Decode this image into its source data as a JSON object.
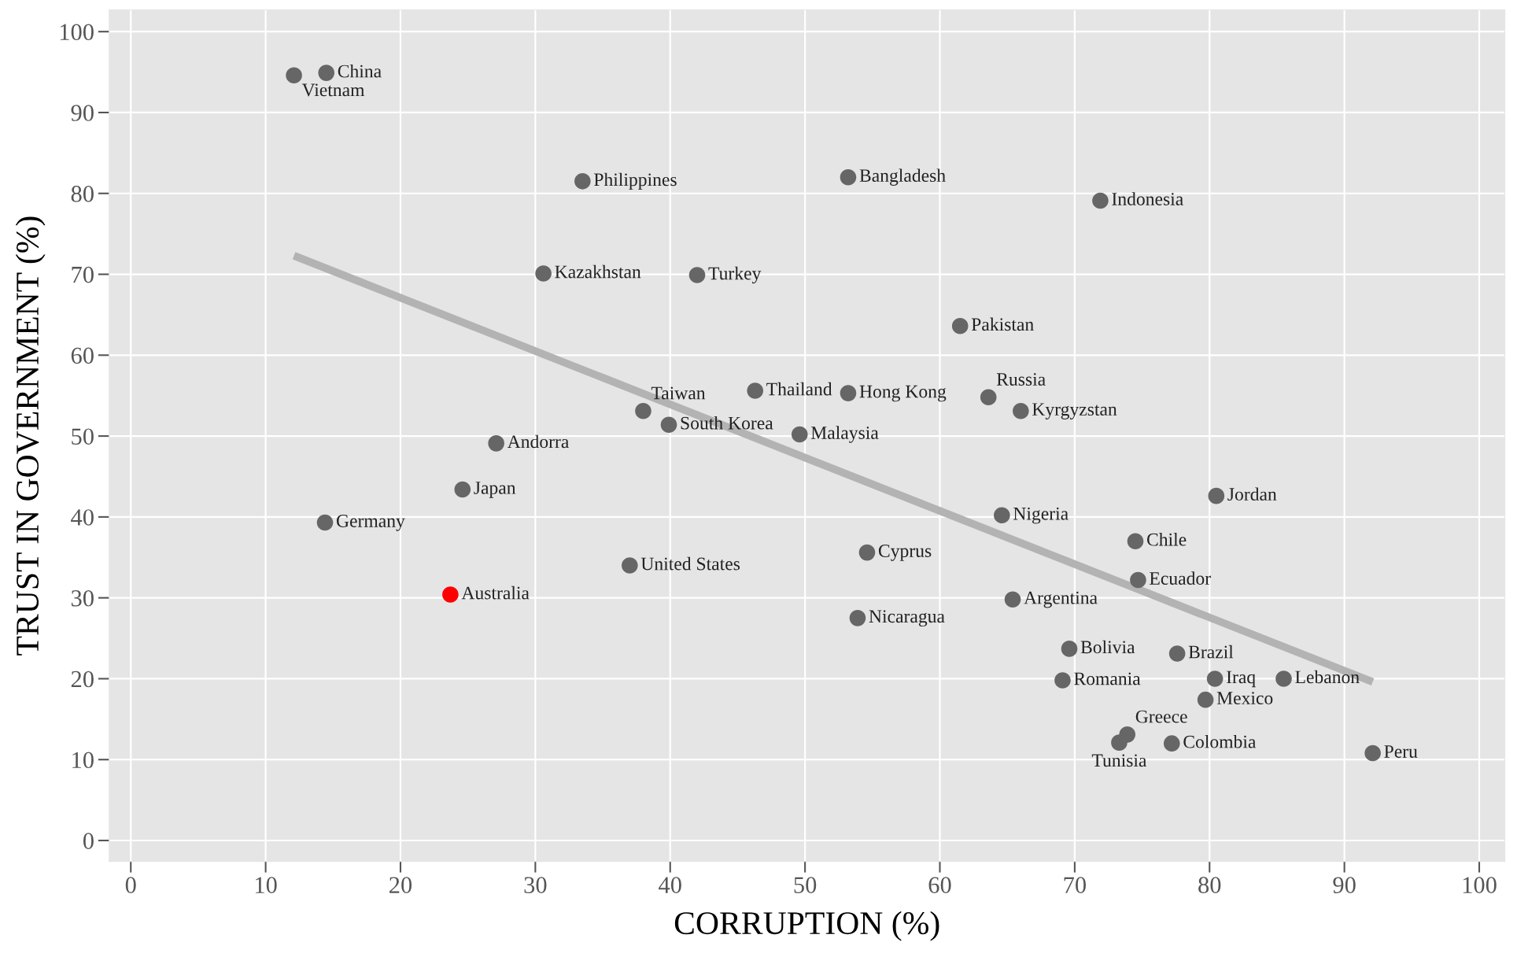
{
  "chart_data": {
    "type": "scatter",
    "xlabel": "CORRUPTION (%)",
    "ylabel": "TRUST IN GOVERNMENT (%)",
    "xlim": [
      -1.6,
      101.9
    ],
    "ylim": [
      -2.6,
      102.7
    ],
    "xticks": [
      0,
      10,
      20,
      30,
      40,
      50,
      60,
      70,
      80,
      90,
      100
    ],
    "yticks": [
      0,
      10,
      20,
      30,
      40,
      50,
      60,
      70,
      80,
      90,
      100
    ],
    "grid": true,
    "legend": false,
    "marker": "circle",
    "series": [
      {
        "color": "#666666",
        "x": [
          12.1,
          14.5,
          33.5,
          53.2,
          71.9,
          30.6,
          42.0,
          61.5,
          46.3,
          53.2,
          63.6,
          66.0,
          38.0,
          39.9,
          49.6,
          27.1,
          24.6,
          14.4,
          64.6,
          80.5,
          74.5,
          54.6,
          37.0,
          74.7,
          65.4,
          53.9,
          69.6,
          77.6,
          69.1,
          80.4,
          85.5,
          79.7,
          73.9,
          73.3,
          77.2,
          92.1
        ],
        "values": [
          94.6,
          94.9,
          81.5,
          82.0,
          79.1,
          70.1,
          69.9,
          63.6,
          55.6,
          55.3,
          54.8,
          53.1,
          53.1,
          51.4,
          50.2,
          49.1,
          43.4,
          39.3,
          40.2,
          42.6,
          37.0,
          35.6,
          34.0,
          32.2,
          29.8,
          27.5,
          23.7,
          23.1,
          19.8,
          20.0,
          20.0,
          17.4,
          13.1,
          12.1,
          12.0,
          10.8
        ]
      },
      {
        "color": "#ff0000",
        "x": [
          23.7
        ],
        "values": [
          30.4
        ]
      },
      {
        "type": "line",
        "marker": "none",
        "color": "#b3b3b3",
        "x": [
          12.1,
          92.1
        ],
        "values": [
          72.3,
          19.6
        ]
      }
    ],
    "annotations": [
      {
        "text": "Vietnam",
        "x": 12.1,
        "y": 94.6
      },
      {
        "text": "China",
        "x": 14.5,
        "y": 94.9
      },
      {
        "text": "Philippines",
        "x": 33.5,
        "y": 81.5
      },
      {
        "text": "Bangladesh",
        "x": 53.2,
        "y": 82.0
      },
      {
        "text": "Indonesia",
        "x": 71.9,
        "y": 79.1
      },
      {
        "text": "Kazakhstan",
        "x": 30.6,
        "y": 70.1
      },
      {
        "text": "Turkey",
        "x": 42.0,
        "y": 69.9
      },
      {
        "text": "Pakistan",
        "x": 61.5,
        "y": 63.6
      },
      {
        "text": "Thailand",
        "x": 46.3,
        "y": 55.6
      },
      {
        "text": "Hong Kong",
        "x": 53.2,
        "y": 55.3
      },
      {
        "text": "Russia",
        "x": 63.6,
        "y": 54.8
      },
      {
        "text": "Kyrgyzstan",
        "x": 66.0,
        "y": 53.1
      },
      {
        "text": "Taiwan",
        "x": 38.0,
        "y": 53.1
      },
      {
        "text": "South Korea",
        "x": 39.9,
        "y": 51.4
      },
      {
        "text": "Malaysia",
        "x": 49.6,
        "y": 50.2
      },
      {
        "text": "Andorra",
        "x": 27.1,
        "y": 49.1
      },
      {
        "text": "Japan",
        "x": 24.6,
        "y": 43.4
      },
      {
        "text": "Germany",
        "x": 14.4,
        "y": 39.3
      },
      {
        "text": "Nigeria",
        "x": 64.6,
        "y": 40.2
      },
      {
        "text": "Jordan",
        "x": 80.5,
        "y": 42.6
      },
      {
        "text": "Chile",
        "x": 74.5,
        "y": 37.0
      },
      {
        "text": "Cyprus",
        "x": 54.6,
        "y": 35.6
      },
      {
        "text": "United States",
        "x": 37.0,
        "y": 34.0
      },
      {
        "text": "Ecuador",
        "x": 74.7,
        "y": 32.2
      },
      {
        "text": "Australia",
        "x": 23.7,
        "y": 30.4
      },
      {
        "text": "Argentina",
        "x": 65.4,
        "y": 29.8
      },
      {
        "text": "Nicaragua",
        "x": 53.9,
        "y": 27.5
      },
      {
        "text": "Bolivia",
        "x": 69.6,
        "y": 23.7
      },
      {
        "text": "Brazil",
        "x": 77.6,
        "y": 23.1
      },
      {
        "text": "Romania",
        "x": 69.1,
        "y": 19.8
      },
      {
        "text": "Iraq",
        "x": 80.4,
        "y": 20.0
      },
      {
        "text": "Lebanon",
        "x": 85.5,
        "y": 20.0
      },
      {
        "text": "Mexico",
        "x": 79.7,
        "y": 17.4
      },
      {
        "text": "Greece",
        "x": 73.9,
        "y": 13.1
      },
      {
        "text": "Tunisia",
        "x": 73.3,
        "y": 12.1
      },
      {
        "text": "Colombia",
        "x": 77.2,
        "y": 12.0
      },
      {
        "text": "Peru",
        "x": 92.1,
        "y": 10.8
      }
    ]
  }
}
